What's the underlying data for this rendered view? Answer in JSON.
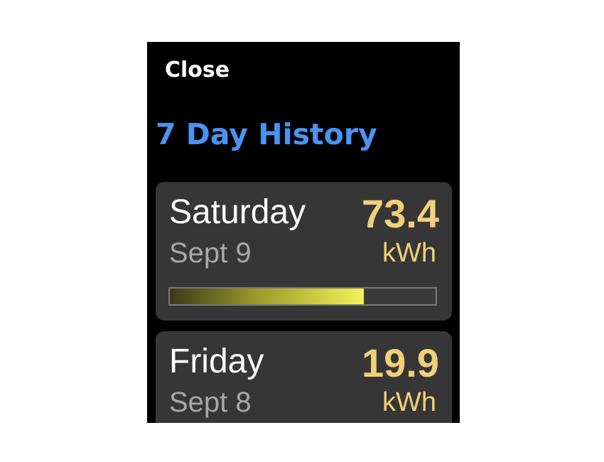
{
  "header": {
    "close_label": "Close",
    "title": "7 Day History"
  },
  "colors": {
    "title": "#4a93f2",
    "energy": "#f2cf7a",
    "card_background": "#363636",
    "bar_fill_end": "#f4f25a"
  },
  "days": [
    {
      "day": "Saturday",
      "date": "Sept 9",
      "value": "73.4",
      "unit": "kWh",
      "usage_fraction": 0.73
    },
    {
      "day": "Friday",
      "date": "Sept 8",
      "value": "19.9",
      "unit": "kWh"
    }
  ]
}
